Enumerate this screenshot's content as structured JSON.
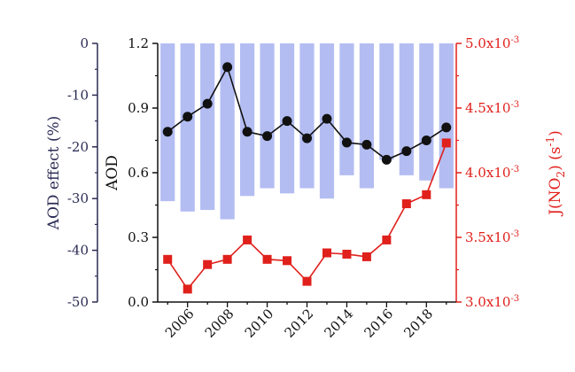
{
  "colors": {
    "bar": "#b3bdf2",
    "aod_line": "#111111",
    "jno2_line": "#e0201b",
    "left_axis": "#2b2b55",
    "mid_axis": "#111111",
    "right_axis": "#e0201b"
  },
  "chart_data": {
    "type": "bar",
    "x": [
      2005,
      2006,
      2007,
      2008,
      2009,
      2010,
      2011,
      2012,
      2013,
      2014,
      2015,
      2016,
      2017,
      2018,
      2019
    ],
    "x_tick_labels": [
      "2006",
      "2008",
      "2010",
      "2012",
      "2014",
      "2016",
      "2018"
    ],
    "x_tick_values": [
      2006,
      2008,
      2010,
      2012,
      2014,
      2016,
      2018
    ],
    "xlim": [
      2004.5,
      2019.5
    ],
    "series": [
      {
        "name": "",
        "type": "bar",
        "axis": "left",
        "values": [
          -30.5,
          -32.5,
          -32.2,
          -34.0,
          -29.5,
          -28.0,
          -29.0,
          -28.0,
          -30.0,
          -25.5,
          -28.0,
          -22.5,
          -25.5,
          -26.5,
          -28.0
        ]
      },
      {
        "name": "",
        "type": "line",
        "axis": "middle",
        "marker": "circle",
        "values": [
          0.79,
          0.86,
          0.92,
          1.09,
          0.79,
          0.77,
          0.84,
          0.76,
          0.85,
          0.74,
          0.73,
          0.66,
          0.7,
          0.75,
          0.81
        ]
      },
      {
        "name": "",
        "type": "line",
        "axis": "right",
        "marker": "square",
        "values": [
          3.33,
          3.1,
          3.29,
          3.33,
          3.48,
          3.33,
          3.32,
          3.16,
          3.38,
          3.37,
          3.35,
          3.48,
          3.76,
          3.83,
          4.23
        ]
      }
    ],
    "axes": {
      "left": {
        "label": "AOD effect (%)",
        "ylim": [
          -50,
          0
        ],
        "tick_values": [
          0,
          -10,
          -20,
          -30,
          -40,
          -50
        ],
        "tick_labels": [
          "0",
          "-10",
          "-20",
          "-30",
          "-40",
          "-50"
        ]
      },
      "middle": {
        "label": "AOD",
        "ylim": [
          0.0,
          1.2
        ],
        "tick_values": [
          1.2,
          0.9,
          0.6,
          0.3,
          0.0
        ],
        "tick_labels": [
          "1.2",
          "0.9",
          "0.6",
          "0.3",
          "0.0"
        ]
      },
      "right": {
        "label_prefix": "J(NO",
        "label_sub": "2",
        "label_mid": ") (s",
        "label_sup": "-1",
        "label_suffix": ")",
        "ylim": [
          3.0,
          5.0
        ],
        "tick_values": [
          5.0,
          4.5,
          4.0,
          3.5,
          3.0
        ],
        "tick_mantissas": [
          "5.0x10",
          "4.5x10",
          "4.0x10",
          "3.5x10",
          "3.0x10"
        ],
        "tick_exponent": "-3"
      }
    },
    "grid": false,
    "legend": "none"
  }
}
